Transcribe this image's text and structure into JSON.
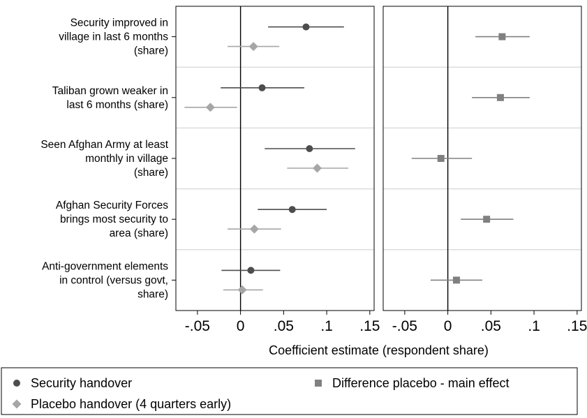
{
  "chart_data": {
    "type": "scatter",
    "xlabel": "Coefficient estimate (respondent share)",
    "xlim": [
      -0.075,
      0.155
    ],
    "xticks": [
      -0.05,
      0,
      0.05,
      0.1,
      0.15
    ],
    "xtick_labels": [
      "-.05",
      "0",
      ".05",
      ".1",
      ".15"
    ],
    "grid": "horizontal separators between outcomes",
    "legend_position": "bottom",
    "outcomes": [
      {
        "label": [
          "Security improved in",
          "village in last 6 months",
          "(share)"
        ]
      },
      {
        "label": [
          "Taliban grown weaker in",
          "last 6 months (share)"
        ]
      },
      {
        "label": [
          "Seen Afghan Army at least",
          "monthly in village",
          "(share)"
        ]
      },
      {
        "label": [
          "Afghan Security Forces",
          "brings most security to",
          "area (share)"
        ]
      },
      {
        "label": [
          "Anti-government elements",
          "in control (versus govt,",
          "share)"
        ]
      }
    ],
    "panels": [
      {
        "series": [
          {
            "name": "Security handover",
            "marker": "circle",
            "color": "#4d4d4d",
            "points": [
              {
                "estimate": 0.076,
                "ci": [
                  0.032,
                  0.12
                ]
              },
              {
                "estimate": 0.025,
                "ci": [
                  -0.023,
                  0.074
                ]
              },
              {
                "estimate": 0.08,
                "ci": [
                  0.028,
                  0.133
                ]
              },
              {
                "estimate": 0.06,
                "ci": [
                  0.02,
                  0.1
                ]
              },
              {
                "estimate": 0.012,
                "ci": [
                  -0.022,
                  0.046
                ]
              }
            ]
          },
          {
            "name": "Placebo handover (4 quarters early)",
            "marker": "diamond",
            "color": "#a6a6a6",
            "points": [
              {
                "estimate": 0.015,
                "ci": [
                  -0.015,
                  0.045
                ]
              },
              {
                "estimate": -0.035,
                "ci": [
                  -0.065,
                  -0.004
                ]
              },
              {
                "estimate": 0.089,
                "ci": [
                  0.054,
                  0.125
                ]
              },
              {
                "estimate": 0.016,
                "ci": [
                  -0.015,
                  0.047
                ]
              },
              {
                "estimate": 0.002,
                "ci": [
                  -0.02,
                  0.026
                ]
              }
            ]
          }
        ]
      },
      {
        "series": [
          {
            "name": "Difference placebo - main effect",
            "marker": "square",
            "color": "#808080",
            "points": [
              {
                "estimate": 0.063,
                "ci": [
                  0.032,
                  0.095
                ]
              },
              {
                "estimate": 0.061,
                "ci": [
                  0.028,
                  0.095
                ]
              },
              {
                "estimate": -0.008,
                "ci": [
                  -0.042,
                  0.028
                ]
              },
              {
                "estimate": 0.045,
                "ci": [
                  0.015,
                  0.076
                ]
              },
              {
                "estimate": 0.01,
                "ci": [
                  -0.02,
                  0.04
                ]
              }
            ]
          }
        ]
      }
    ],
    "legend": [
      {
        "label": "Security handover",
        "marker": "circle",
        "color": "#4d4d4d"
      },
      {
        "label": "Difference placebo - main effect",
        "marker": "square",
        "color": "#808080"
      },
      {
        "label": "Placebo handover (4 quarters early)",
        "marker": "diamond",
        "color": "#a6a6a6"
      }
    ]
  }
}
